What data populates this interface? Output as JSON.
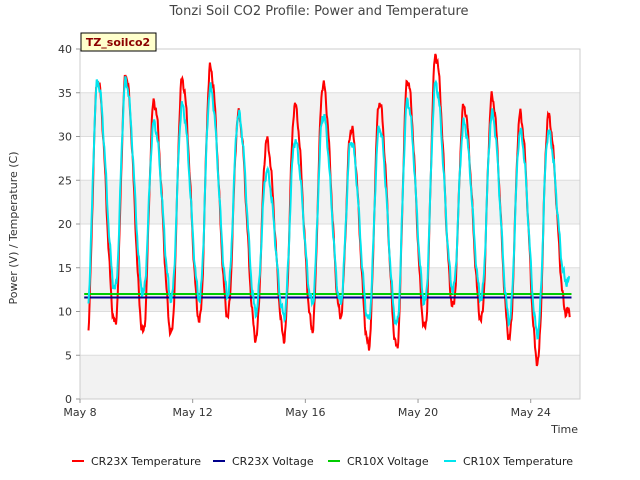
{
  "chart_data": {
    "type": "line",
    "title": "Tonzi Soil CO2 Profile: Power and Temperature",
    "site_label": "TZ_soilco2",
    "xlabel": "Time",
    "ylabel": "Power (V) / Temperature (C)",
    "xlim": [
      "2024-05-08",
      "2024-05-25T18:00"
    ],
    "ylim": [
      0,
      40
    ],
    "x_tick_labels": [
      "May 8",
      "May 12",
      "May 16",
      "May 20",
      "May 24"
    ],
    "y_ticks": [
      0,
      5,
      10,
      15,
      20,
      25,
      30,
      35,
      40
    ],
    "grid": "horizontal bands",
    "legend_position": "bottom",
    "start_date": "2024-05-08",
    "series": [
      {
        "name": "CR23X Temperature",
        "color": "#ff0000",
        "daily": [
          {
            "min": 6.8,
            "max": 36.5
          },
          {
            "min": 8.5,
            "max": 37.0
          },
          {
            "min": 7.5,
            "max": 34.0
          },
          {
            "min": 7.5,
            "max": 36.5
          },
          {
            "min": 9.0,
            "max": 37.8
          },
          {
            "min": 9.5,
            "max": 32.5
          },
          {
            "min": 7.0,
            "max": 29.5
          },
          {
            "min": 7.0,
            "max": 33.5
          },
          {
            "min": 8.0,
            "max": 36.0
          },
          {
            "min": 9.5,
            "max": 31.0
          },
          {
            "min": 6.0,
            "max": 34.0
          },
          {
            "min": 5.8,
            "max": 36.5
          },
          {
            "min": 8.0,
            "max": 39.3
          },
          {
            "min": 10.5,
            "max": 33.5
          },
          {
            "min": 9.0,
            "max": 34.5
          },
          {
            "min": 7.0,
            "max": 32.5
          },
          {
            "min": 4.3,
            "max": 32.3
          },
          {
            "min": 10.0,
            "max": 10.0
          }
        ]
      },
      {
        "name": "CR23X Voltage",
        "color": "#00008b",
        "values": [
          11.6,
          11.6
        ]
      },
      {
        "name": "CR10X Voltage",
        "color": "#00cc00",
        "values": [
          12.0,
          12.0
        ]
      },
      {
        "name": "CR10X Temperature",
        "color": "#00e5ee",
        "daily": [
          {
            "min": 10.0,
            "max": 36.3
          },
          {
            "min": 12.5,
            "max": 36.3
          },
          {
            "min": 12.0,
            "max": 31.5
          },
          {
            "min": 11.5,
            "max": 33.5
          },
          {
            "min": 11.5,
            "max": 35.5
          },
          {
            "min": 12.0,
            "max": 32.5
          },
          {
            "min": 10.0,
            "max": 26.0
          },
          {
            "min": 9.5,
            "max": 29.5
          },
          {
            "min": 11.0,
            "max": 32.5
          },
          {
            "min": 11.0,
            "max": 29.5
          },
          {
            "min": 9.0,
            "max": 31.0
          },
          {
            "min": 8.5,
            "max": 34.0
          },
          {
            "min": 11.0,
            "max": 36.0
          },
          {
            "min": 12.5,
            "max": 31.5
          },
          {
            "min": 11.5,
            "max": 32.5
          },
          {
            "min": 9.0,
            "max": 30.5
          },
          {
            "min": 7.5,
            "max": 30.5
          },
          {
            "min": 13.5,
            "max": 13.5
          }
        ]
      }
    ]
  }
}
